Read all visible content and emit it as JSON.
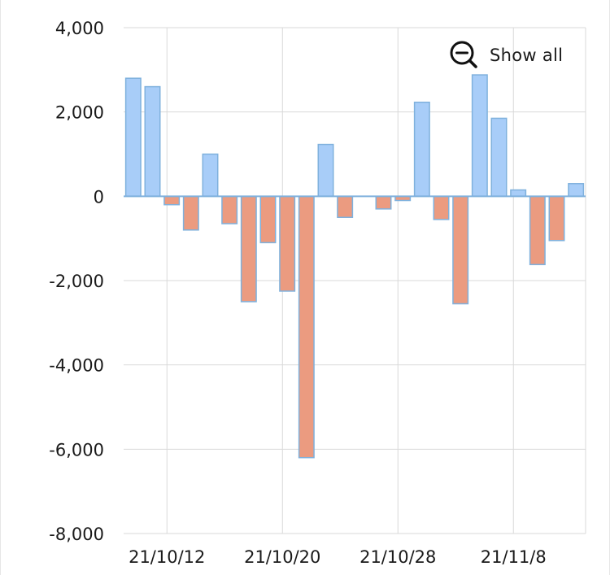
{
  "chart_data": {
    "type": "bar",
    "y_ticks": [
      4000,
      2000,
      0,
      -2000,
      -4000,
      -6000,
      -8000
    ],
    "y_tick_labels": [
      "4,000",
      "2,000",
      "0",
      "-2,000",
      "-4,000",
      "-6,000",
      "-8,000"
    ],
    "ylim": [
      -8000,
      4000
    ],
    "x_tick_labels": [
      "21/10/12",
      "21/10/20",
      "21/10/28",
      "21/11/8"
    ],
    "x_tick_positions": [
      1.75,
      7.75,
      13.75,
      19.75
    ],
    "values": [
      2800,
      2600,
      -200,
      -800,
      1000,
      -650,
      -2500,
      -1100,
      -2250,
      -6200,
      1230,
      -500,
      0,
      -300,
      -100,
      2230,
      -550,
      -2550,
      2880,
      1850,
      150,
      -1620,
      -1050,
      300
    ],
    "positive_color": "#a8cdf8",
    "negative_color": "#eb9b80",
    "border_color": "#7fb1dd",
    "grid": true,
    "legend": "none"
  },
  "controls": {
    "show_all_label": "Show all",
    "show_all_icon": "zoom-out-icon"
  }
}
